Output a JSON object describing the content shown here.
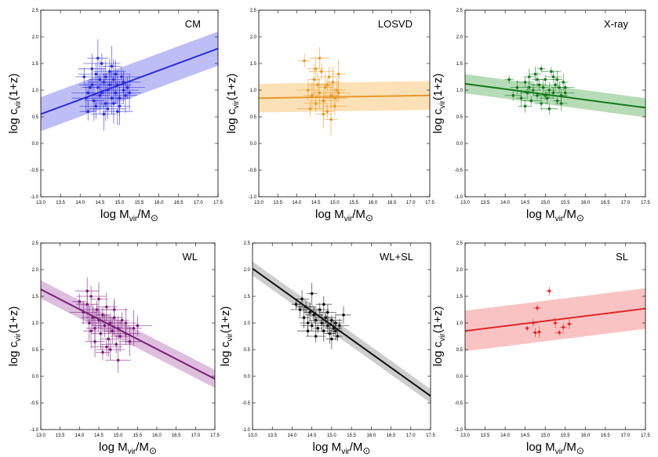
{
  "chart_data": [
    {
      "type": "scatter",
      "title": "CM",
      "xlabel": "log M",
      "xlabel_sub": "vir",
      "xlabel_tail": "/M",
      "xlabel_sun": "⊙",
      "ylabel": "log c",
      "ylabel_sub": "vir",
      "ylabel_tail": "(1+z)",
      "color": "#2b2bdc",
      "band_color": "#b3b3f5",
      "xlim": [
        13.0,
        17.5
      ],
      "ylim": [
        -1.0,
        2.5
      ],
      "xticks": [
        "13.0",
        "13.5",
        "14.0",
        "14.5",
        "15.0",
        "15.5",
        "16.0",
        "16.5",
        "17.0",
        "17.5"
      ],
      "yticks": [
        "-1.0",
        "-0.5",
        "0.0",
        "0.5",
        "1.0",
        "1.5",
        "2.0",
        "2.5"
      ],
      "fit": {
        "x": [
          13.0,
          17.5
        ],
        "y": [
          0.55,
          1.78
        ],
        "band_halfwidth": 0.32
      },
      "points": [
        [
          14.1,
          1.25
        ],
        [
          14.2,
          0.95
        ],
        [
          14.3,
          1.1
        ],
        [
          14.35,
          0.8
        ],
        [
          14.4,
          1.3
        ],
        [
          14.45,
          1.05
        ],
        [
          14.5,
          0.9
        ],
        [
          14.55,
          1.5
        ],
        [
          14.6,
          1.15
        ],
        [
          14.65,
          0.75
        ],
        [
          14.7,
          1.0
        ],
        [
          14.75,
          1.35
        ],
        [
          14.8,
          0.85
        ],
        [
          14.85,
          1.2
        ],
        [
          14.9,
          0.95
        ],
        [
          14.95,
          1.1
        ],
        [
          15.0,
          0.7
        ],
        [
          15.05,
          1.25
        ],
        [
          15.1,
          1.0
        ],
        [
          15.15,
          0.9
        ],
        [
          14.2,
          0.6
        ],
        [
          14.4,
          0.7
        ],
        [
          14.6,
          0.55
        ],
        [
          14.8,
          1.45
        ],
        [
          15.2,
          1.05
        ],
        [
          14.3,
          1.4
        ],
        [
          14.5,
          1.2
        ],
        [
          14.7,
          0.65
        ],
        [
          14.9,
          1.3
        ],
        [
          15.0,
          0.85
        ],
        [
          14.25,
          1.05
        ],
        [
          14.55,
          0.95
        ],
        [
          14.65,
          1.25
        ],
        [
          14.85,
          0.75
        ],
        [
          15.1,
          1.15
        ],
        [
          14.15,
          0.85
        ],
        [
          14.45,
          1.6
        ],
        [
          14.75,
          1.1
        ],
        [
          14.95,
          0.6
        ],
        [
          15.25,
          0.95
        ]
      ],
      "xerr": 0.35,
      "yerr": 0.28
    },
    {
      "type": "scatter",
      "title": "LOSVD",
      "xlabel": "log M",
      "xlabel_sub": "vir",
      "xlabel_tail": "/M",
      "xlabel_sun": "⊙",
      "ylabel": "log c",
      "ylabel_sub": "vir",
      "ylabel_tail": "(1+z)",
      "color": "#e8972a",
      "band_color": "#fbdcaa",
      "xlim": [
        13.0,
        17.5
      ],
      "ylim": [
        -1.0,
        2.5
      ],
      "xticks": [
        "13.0",
        "13.5",
        "14.0",
        "14.5",
        "15.0",
        "15.5",
        "16.0",
        "16.5",
        "17.0",
        "17.5"
      ],
      "yticks": [
        "-1.0",
        "-0.5",
        "0.0",
        "0.5",
        "1.0",
        "1.5",
        "2.0",
        "2.5"
      ],
      "fit": {
        "x": [
          13.0,
          17.5
        ],
        "y": [
          0.85,
          0.9
        ],
        "band_halfwidth": 0.27
      },
      "points": [
        [
          14.2,
          1.55
        ],
        [
          14.3,
          1.0
        ],
        [
          14.4,
          0.9
        ],
        [
          14.45,
          1.2
        ],
        [
          14.5,
          0.75
        ],
        [
          14.55,
          1.1
        ],
        [
          14.6,
          0.95
        ],
        [
          14.65,
          1.35
        ],
        [
          14.7,
          0.8
        ],
        [
          14.75,
          1.05
        ],
        [
          14.8,
          0.6
        ],
        [
          14.85,
          1.25
        ],
        [
          14.9,
          0.9
        ],
        [
          14.95,
          1.15
        ],
        [
          15.0,
          0.7
        ],
        [
          15.05,
          1.0
        ],
        [
          15.1,
          1.3
        ],
        [
          14.35,
          0.65
        ],
        [
          14.6,
          1.6
        ],
        [
          14.7,
          0.55
        ],
        [
          14.8,
          1.1
        ],
        [
          15.0,
          0.85
        ],
        [
          14.5,
          1.4
        ],
        [
          14.9,
          0.45
        ],
        [
          15.1,
          0.95
        ]
      ],
      "xerr": 0.25,
      "yerr": 0.22
    },
    {
      "type": "scatter",
      "title": "X-ray",
      "xlabel": "log M",
      "xlabel_sub": "vir",
      "xlabel_tail": "/M",
      "xlabel_sun": "⊙",
      "ylabel": "log c",
      "ylabel_sub": "vir",
      "ylabel_tail": "(1+z)",
      "color": "#17791c",
      "band_color": "#a9d6aa",
      "xlim": [
        13.0,
        17.5
      ],
      "ylim": [
        -1.0,
        2.5
      ],
      "xticks": [
        "13.0",
        "13.5",
        "14.0",
        "14.5",
        "15.0",
        "15.5",
        "16.0",
        "16.5",
        "17.0",
        "17.5"
      ],
      "yticks": [
        "-1.0",
        "-0.5",
        "0.0",
        "0.5",
        "1.0",
        "1.5",
        "2.0",
        "2.5"
      ],
      "fit": {
        "x": [
          13.0,
          17.5
        ],
        "y": [
          1.12,
          0.67
        ],
        "band_halfwidth": 0.18
      },
      "points": [
        [
          14.1,
          1.2
        ],
        [
          14.2,
          0.9
        ],
        [
          14.3,
          1.05
        ],
        [
          14.4,
          0.85
        ],
        [
          14.5,
          1.15
        ],
        [
          14.55,
          0.95
        ],
        [
          14.6,
          1.25
        ],
        [
          14.65,
          0.8
        ],
        [
          14.7,
          1.0
        ],
        [
          14.75,
          1.3
        ],
        [
          14.8,
          0.9
        ],
        [
          14.85,
          1.1
        ],
        [
          14.9,
          0.75
        ],
        [
          14.95,
          1.05
        ],
        [
          15.0,
          1.2
        ],
        [
          15.05,
          0.85
        ],
        [
          15.1,
          1.0
        ],
        [
          15.15,
          1.35
        ],
        [
          15.2,
          0.95
        ],
        [
          15.25,
          1.1
        ],
        [
          15.3,
          0.8
        ],
        [
          15.35,
          1.05
        ],
        [
          15.4,
          0.9
        ],
        [
          15.45,
          1.15
        ],
        [
          15.5,
          0.95
        ],
        [
          14.5,
          0.7
        ],
        [
          14.8,
          1.2
        ],
        [
          15.0,
          0.9
        ],
        [
          15.2,
          1.25
        ],
        [
          15.4,
          0.75
        ],
        [
          14.9,
          1.4
        ],
        [
          15.1,
          0.65
        ],
        [
          14.6,
          1.05
        ],
        [
          15.3,
          1.2
        ],
        [
          15.5,
          1.05
        ]
      ],
      "xerr": 0.18,
      "yerr": 0.12
    },
    {
      "type": "scatter",
      "title": "WL",
      "xlabel": "log M",
      "xlabel_sub": "vir",
      "xlabel_tail": "/M",
      "xlabel_sun": "⊙",
      "ylabel": "log c",
      "ylabel_sub": "vir",
      "ylabel_tail": "(1+z)",
      "color": "#7b1e7b",
      "band_color": "#d8b3d8",
      "xlim": [
        13.0,
        17.5
      ],
      "ylim": [
        -1.0,
        2.5
      ],
      "xticks": [
        "13.0",
        "13.5",
        "14.0",
        "14.5",
        "15.0",
        "15.5",
        "16.0",
        "16.5",
        "17.0",
        "17.5"
      ],
      "yticks": [
        "-1.0",
        "-0.5",
        "0.0",
        "0.5",
        "1.0",
        "1.5",
        "2.0",
        "2.5"
      ],
      "fit": {
        "x": [
          13.0,
          17.5
        ],
        "y": [
          1.63,
          -0.05
        ],
        "band_halfwidth": 0.17
      },
      "points": [
        [
          14.0,
          1.4
        ],
        [
          14.1,
          1.2
        ],
        [
          14.2,
          1.35
        ],
        [
          14.25,
          1.0
        ],
        [
          14.3,
          1.5
        ],
        [
          14.35,
          1.1
        ],
        [
          14.4,
          0.9
        ],
        [
          14.45,
          1.25
        ],
        [
          14.5,
          1.05
        ],
        [
          14.55,
          0.8
        ],
        [
          14.6,
          1.15
        ],
        [
          14.65,
          0.95
        ],
        [
          14.7,
          1.3
        ],
        [
          14.75,
          0.7
        ],
        [
          14.8,
          1.0
        ],
        [
          14.85,
          0.85
        ],
        [
          14.9,
          1.1
        ],
        [
          14.95,
          0.6
        ],
        [
          15.0,
          0.9
        ],
        [
          15.05,
          0.75
        ],
        [
          15.1,
          1.05
        ],
        [
          15.2,
          0.8
        ],
        [
          15.3,
          0.65
        ],
        [
          15.4,
          0.9
        ],
        [
          15.5,
          0.95
        ],
        [
          14.2,
          1.6
        ],
        [
          14.5,
          1.45
        ],
        [
          14.7,
          0.55
        ],
        [
          15.0,
          0.3
        ],
        [
          14.4,
          0.65
        ],
        [
          14.6,
          0.45
        ],
        [
          14.9,
          1.25
        ],
        [
          15.2,
          1.0
        ],
        [
          14.3,
          0.85
        ],
        [
          14.8,
          0.5
        ]
      ],
      "xerr": 0.3,
      "yerr": 0.25
    },
    {
      "type": "scatter",
      "title": "WL+SL",
      "xlabel": "log M",
      "xlabel_sub": "vir",
      "xlabel_tail": "/M",
      "xlabel_sun": "⊙",
      "ylabel": "log c",
      "ylabel_sub": "vir",
      "ylabel_tail": "(1+z)",
      "color": "#111111",
      "band_color": "#c4c4c4",
      "xlim": [
        13.0,
        17.5
      ],
      "ylim": [
        -1.0,
        2.5
      ],
      "xticks": [
        "13.0",
        "13.5",
        "14.0",
        "14.5",
        "15.0",
        "15.5",
        "16.0",
        "16.5",
        "17.0",
        "17.5"
      ],
      "yticks": [
        "-1.0",
        "-0.5",
        "0.0",
        "0.5",
        "1.0",
        "1.5",
        "2.0",
        "2.5"
      ],
      "fit": {
        "x": [
          13.0,
          17.5
        ],
        "y": [
          2.02,
          -0.37
        ],
        "band_halfwidth": 0.13
      },
      "points": [
        [
          14.1,
          1.35
        ],
        [
          14.2,
          1.25
        ],
        [
          14.25,
          1.45
        ],
        [
          14.3,
          1.1
        ],
        [
          14.35,
          1.3
        ],
        [
          14.4,
          1.0
        ],
        [
          14.45,
          1.2
        ],
        [
          14.5,
          0.95
        ],
        [
          14.55,
          1.15
        ],
        [
          14.6,
          1.05
        ],
        [
          14.65,
          0.9
        ],
        [
          14.7,
          1.25
        ],
        [
          14.75,
          1.0
        ],
        [
          14.8,
          0.85
        ],
        [
          14.85,
          1.1
        ],
        [
          14.9,
          0.95
        ],
        [
          14.95,
          0.8
        ],
        [
          15.0,
          1.05
        ],
        [
          15.05,
          0.9
        ],
        [
          15.1,
          1.0
        ],
        [
          15.15,
          0.75
        ],
        [
          15.2,
          0.95
        ],
        [
          15.3,
          1.15
        ],
        [
          14.5,
          1.55
        ],
        [
          14.6,
          0.75
        ],
        [
          14.8,
          1.35
        ],
        [
          15.0,
          0.7
        ],
        [
          14.4,
          0.85
        ],
        [
          14.9,
          1.2
        ],
        [
          15.1,
          0.85
        ]
      ],
      "xerr": 0.2,
      "yerr": 0.15
    },
    {
      "type": "scatter",
      "title": "SL",
      "xlabel": "log M",
      "xlabel_sub": "vir",
      "xlabel_tail": "/M",
      "xlabel_sun": "⊙",
      "ylabel": "log c",
      "ylabel_sub": "vir",
      "ylabel_tail": "(1+z)",
      "color": "#e02828",
      "band_color": "#f8b8b8",
      "xlim": [
        13.0,
        17.5
      ],
      "ylim": [
        -1.0,
        2.5
      ],
      "xticks": [
        "13.0",
        "13.5",
        "14.0",
        "14.5",
        "15.0",
        "15.5",
        "16.0",
        "16.5",
        "17.0",
        "17.5"
      ],
      "yticks": [
        "-1.0",
        "-0.5",
        "0.0",
        "0.5",
        "1.0",
        "1.5",
        "2.0",
        "2.5"
      ],
      "fit": {
        "x": [
          13.0,
          17.5
        ],
        "y": [
          0.85,
          1.27
        ],
        "band_halfwidth": 0.38
      },
      "points": [
        [
          14.55,
          0.9
        ],
        [
          14.7,
          1.0
        ],
        [
          14.75,
          0.82
        ],
        [
          14.85,
          0.83
        ],
        [
          14.8,
          1.28
        ],
        [
          15.1,
          1.6
        ],
        [
          15.25,
          1.0
        ],
        [
          15.35,
          0.82
        ],
        [
          15.45,
          0.92
        ],
        [
          15.6,
          0.98
        ]
      ],
      "xerr": 0.08,
      "yerr": 0.08
    }
  ]
}
